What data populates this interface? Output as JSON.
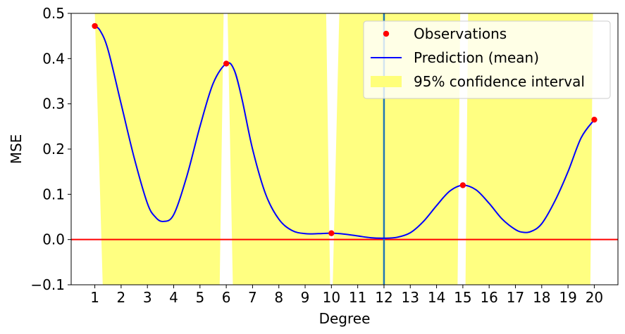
{
  "chart_data": {
    "type": "line",
    "title": "",
    "xlabel": "Degree",
    "ylabel": "MSE",
    "xlim": [
      0.1,
      20.9
    ],
    "ylim": [
      -0.1,
      0.5
    ],
    "xticks": [
      1,
      2,
      3,
      4,
      5,
      6,
      7,
      8,
      9,
      10,
      11,
      12,
      13,
      14,
      15,
      16,
      17,
      18,
      19,
      20
    ],
    "yticks": [
      -0.1,
      0.0,
      0.1,
      0.2,
      0.3,
      0.4,
      0.5
    ],
    "ytick_labels": [
      "−0.1",
      "0.0",
      "0.1",
      "0.2",
      "0.3",
      "0.4",
      "0.5"
    ],
    "legend_position": "top-right",
    "grid": false,
    "observations": {
      "name": "Observations",
      "color": "#ff0000",
      "x": [
        1,
        6,
        10,
        15,
        20
      ],
      "y": [
        0.472,
        0.389,
        0.014,
        0.12,
        0.265
      ]
    },
    "prediction": {
      "name": "Prediction (mean)",
      "color": "#0000ff",
      "x": [
        1,
        1.2,
        1.5,
        2,
        2.5,
        3,
        3.3,
        3.6,
        4,
        4.5,
        5,
        5.5,
        6,
        6.3,
        6.6,
        7,
        7.5,
        8,
        8.5,
        9,
        9.5,
        10,
        10.5,
        11,
        11.5,
        12,
        12.5,
        13,
        13.5,
        14,
        14.5,
        15,
        15.5,
        16,
        16.5,
        17,
        17.3,
        17.6,
        18,
        18.5,
        19,
        19.5,
        20
      ],
      "y": [
        0.472,
        0.462,
        0.42,
        0.3,
        0.18,
        0.08,
        0.05,
        0.04,
        0.055,
        0.14,
        0.25,
        0.345,
        0.389,
        0.375,
        0.31,
        0.2,
        0.1,
        0.045,
        0.02,
        0.013,
        0.013,
        0.014,
        0.012,
        0.008,
        0.004,
        0.003,
        0.005,
        0.015,
        0.04,
        0.075,
        0.107,
        0.12,
        0.11,
        0.08,
        0.045,
        0.022,
        0.016,
        0.018,
        0.035,
        0.085,
        0.15,
        0.225,
        0.265
      ]
    },
    "confidence_interval": {
      "name": "95% confidence interval",
      "color": "#ffff7a",
      "segments": [
        {
          "top_left_x": 1.0,
          "top_right_x": 5.9,
          "bottom_left_x": 1.3,
          "bottom_right_x": 5.75
        },
        {
          "top_left_x": 6.05,
          "top_right_x": 9.8,
          "bottom_left_x": 6.25,
          "bottom_right_x": 9.95
        },
        {
          "top_left_x": 10.3,
          "top_right_x": 14.9,
          "bottom_left_x": 10.05,
          "bottom_right_x": 14.8
        },
        {
          "top_left_x": 15.2,
          "top_right_x": 19.95,
          "bottom_left_x": 15.1,
          "bottom_right_x": 19.85
        }
      ]
    },
    "reference_lines": [
      {
        "orientation": "horizontal",
        "value": 0.0,
        "color": "#ff0000"
      },
      {
        "orientation": "vertical",
        "value": 12,
        "color": "#1f77b4"
      }
    ],
    "legend": [
      {
        "label": "Observations",
        "kind": "marker",
        "color": "#ff0000"
      },
      {
        "label": "Prediction (mean)",
        "kind": "line",
        "color": "#0000ff"
      },
      {
        "label": "95% confidence interval",
        "kind": "patch",
        "color": "#ffff7a"
      }
    ]
  }
}
